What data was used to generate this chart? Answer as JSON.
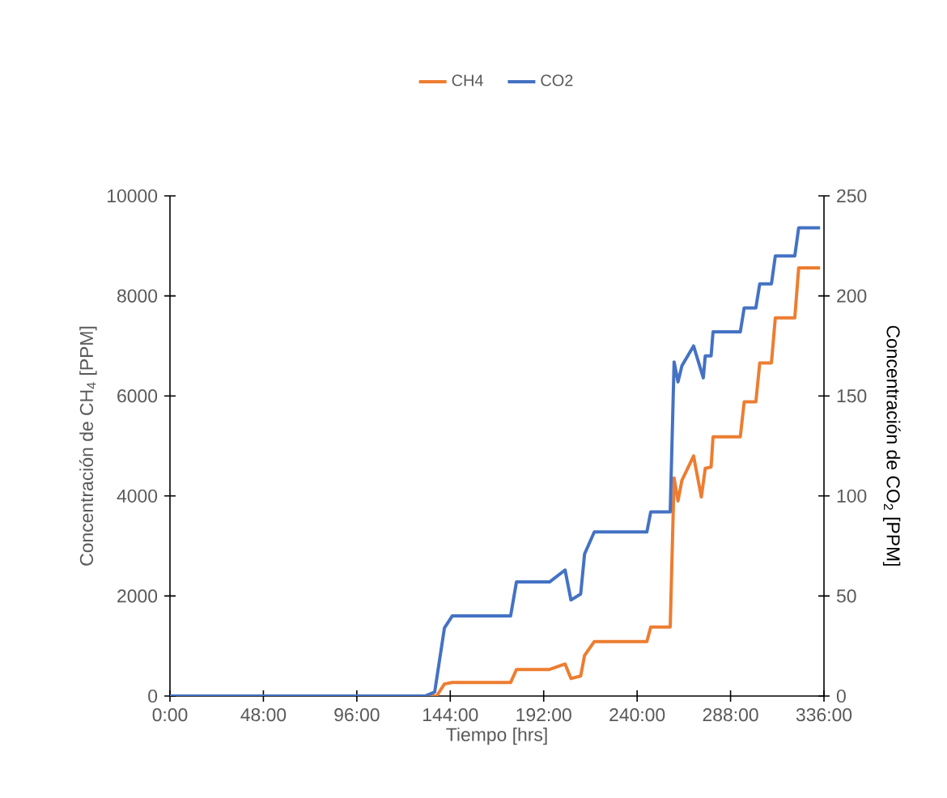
{
  "chart_data": {
    "type": "line",
    "xlabel": "Tiempo [hrs]",
    "ylabel": "Concentración de CH$_{4}$ [PPM]",
    "y2label": "Concentración de CO$_{2}$ [PPM]",
    "legend": "top",
    "line_style": "solid",
    "marker": "none",
    "grid": false,
    "xlim": [
      0,
      336
    ],
    "xticks": [
      {
        "value": 0,
        "label": "0:00"
      },
      {
        "value": 48,
        "label": "48:00"
      },
      {
        "value": 96,
        "label": "96:00"
      },
      {
        "value": 144,
        "label": "144:00"
      },
      {
        "value": 192,
        "label": "192:00"
      },
      {
        "value": 240,
        "label": "240:00"
      },
      {
        "value": 288,
        "label": "288:00"
      },
      {
        "value": 336,
        "label": "336:00"
      }
    ],
    "ylim": [
      0,
      10000
    ],
    "yticks": [
      0,
      2000,
      4000,
      6000,
      8000,
      10000
    ],
    "y2lim": [
      0,
      250
    ],
    "y2ticks": [
      0,
      50,
      100,
      150,
      200,
      250
    ],
    "series": [
      {
        "name": "CH4",
        "color": "#ed7d31",
        "x": [
          0,
          137,
          141,
          145,
          175,
          178,
          195,
          203,
          206,
          211,
          213,
          218,
          245,
          247,
          257,
          259,
          261,
          263,
          269,
          273,
          275,
          278,
          279,
          293,
          295,
          301,
          303,
          309,
          311,
          321,
          323,
          334
        ],
        "values": [
          0,
          0,
          240,
          270,
          270,
          530,
          530,
          640,
          350,
          400,
          810,
          1090,
          1090,
          1380,
          1380,
          4360,
          3900,
          4310,
          4800,
          3980,
          4550,
          4580,
          5180,
          5180,
          5880,
          5880,
          6660,
          6660,
          7560,
          7560,
          8560,
          8560
        ]
      },
      {
        "name": "CO2",
        "color": "#4472c4",
        "axis": "y2",
        "x": [
          0,
          131,
          136,
          141,
          145,
          175,
          178,
          195,
          203,
          206,
          211,
          213,
          218,
          245,
          247,
          257,
          259,
          261,
          263,
          269,
          274,
          275,
          278,
          279,
          293,
          295,
          301,
          303,
          309,
          311,
          321,
          323,
          334
        ],
        "values": [
          0,
          0,
          2,
          34,
          40,
          40,
          57,
          57,
          63,
          48,
          51,
          71,
          82,
          82,
          92,
          92,
          167,
          157,
          165,
          175,
          159,
          170,
          170,
          182,
          182,
          194,
          194,
          206,
          206,
          220,
          220,
          234,
          234
        ]
      }
    ]
  }
}
